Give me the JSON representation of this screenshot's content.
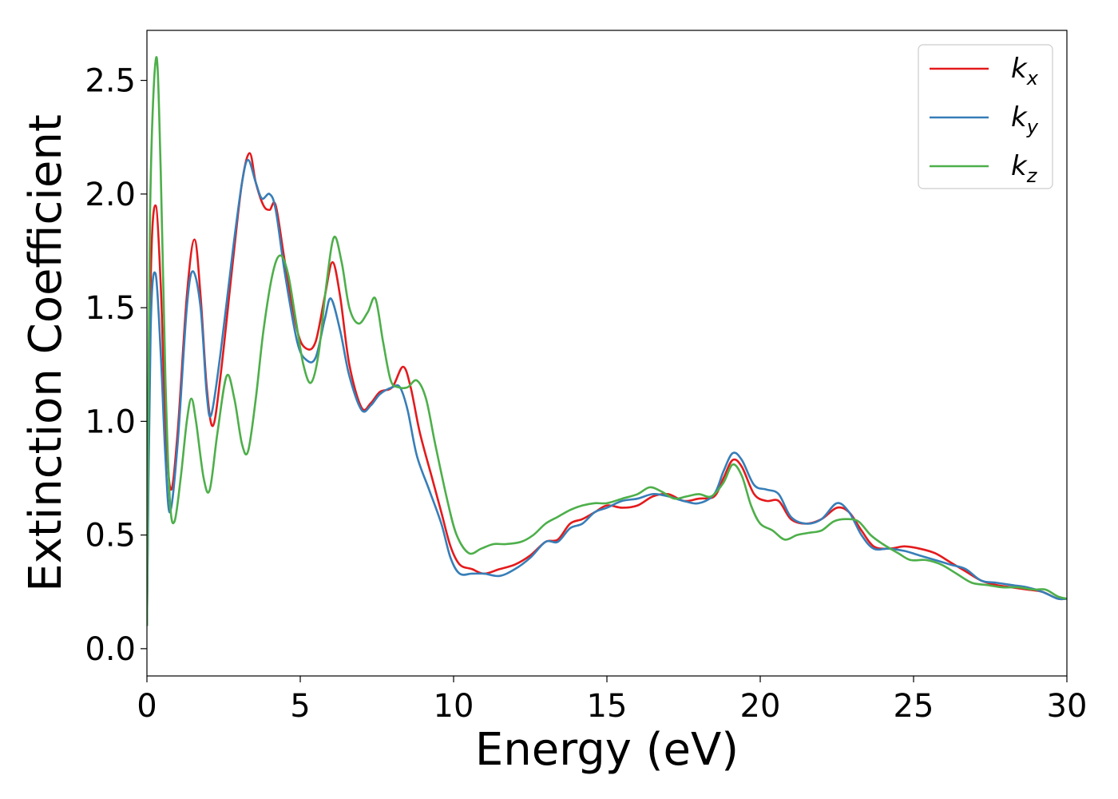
{
  "chart_data": {
    "type": "line",
    "xlabel": "Energy (eV)",
    "ylabel": "Extinction Coefficient",
    "xlim": [
      0,
      30
    ],
    "ylim": [
      -0.12,
      2.72
    ],
    "xticks": [
      0,
      5,
      10,
      15,
      20,
      25,
      30
    ],
    "xtick_labels": [
      "0",
      "5",
      "10",
      "15",
      "20",
      "25",
      "30"
    ],
    "yticks": [
      0.0,
      0.5,
      1.0,
      1.5,
      2.0,
      2.5
    ],
    "ytick_labels": [
      "0.0",
      "0.5",
      "1.0",
      "1.5",
      "2.0",
      "2.5"
    ],
    "grid": false,
    "legend_position": "top-right",
    "series": [
      {
        "name": "k",
        "subscript": "x",
        "color": "#e41a1c",
        "points": [
          [
            0,
            0.1
          ],
          [
            0.12,
            1.6
          ],
          [
            0.28,
            1.95
          ],
          [
            0.45,
            1.6
          ],
          [
            0.6,
            1.0
          ],
          [
            0.78,
            0.7
          ],
          [
            1.0,
            0.95
          ],
          [
            1.3,
            1.55
          ],
          [
            1.55,
            1.8
          ],
          [
            1.75,
            1.55
          ],
          [
            1.95,
            1.15
          ],
          [
            2.15,
            0.98
          ],
          [
            2.4,
            1.2
          ],
          [
            2.8,
            1.7
          ],
          [
            3.1,
            2.05
          ],
          [
            3.35,
            2.18
          ],
          [
            3.55,
            2.05
          ],
          [
            3.8,
            1.95
          ],
          [
            4.0,
            1.93
          ],
          [
            4.2,
            1.95
          ],
          [
            4.5,
            1.7
          ],
          [
            4.9,
            1.4
          ],
          [
            5.2,
            1.32
          ],
          [
            5.5,
            1.35
          ],
          [
            5.8,
            1.55
          ],
          [
            6.05,
            1.7
          ],
          [
            6.3,
            1.55
          ],
          [
            6.6,
            1.25
          ],
          [
            7.0,
            1.06
          ],
          [
            7.3,
            1.08
          ],
          [
            7.6,
            1.13
          ],
          [
            8.0,
            1.15
          ],
          [
            8.35,
            1.24
          ],
          [
            8.6,
            1.15
          ],
          [
            8.9,
            0.95
          ],
          [
            9.3,
            0.75
          ],
          [
            9.6,
            0.6
          ],
          [
            9.9,
            0.45
          ],
          [
            10.2,
            0.37
          ],
          [
            10.6,
            0.35
          ],
          [
            11.0,
            0.33
          ],
          [
            11.5,
            0.35
          ],
          [
            12.0,
            0.37
          ],
          [
            12.5,
            0.41
          ],
          [
            13.0,
            0.47
          ],
          [
            13.4,
            0.48
          ],
          [
            13.8,
            0.55
          ],
          [
            14.2,
            0.57
          ],
          [
            14.6,
            0.6
          ],
          [
            15.0,
            0.63
          ],
          [
            15.5,
            0.62
          ],
          [
            16.0,
            0.63
          ],
          [
            16.5,
            0.67
          ],
          [
            17.0,
            0.68
          ],
          [
            17.5,
            0.65
          ],
          [
            18.0,
            0.66
          ],
          [
            18.5,
            0.67
          ],
          [
            18.8,
            0.75
          ],
          [
            19.1,
            0.83
          ],
          [
            19.4,
            0.8
          ],
          [
            19.8,
            0.68
          ],
          [
            20.2,
            0.65
          ],
          [
            20.6,
            0.65
          ],
          [
            21.0,
            0.57
          ],
          [
            21.5,
            0.55
          ],
          [
            22.0,
            0.57
          ],
          [
            22.5,
            0.62
          ],
          [
            22.9,
            0.6
          ],
          [
            23.3,
            0.52
          ],
          [
            23.7,
            0.45
          ],
          [
            24.2,
            0.44
          ],
          [
            24.7,
            0.45
          ],
          [
            25.2,
            0.44
          ],
          [
            25.7,
            0.42
          ],
          [
            26.2,
            0.38
          ],
          [
            26.7,
            0.34
          ],
          [
            27.2,
            0.3
          ],
          [
            27.7,
            0.28
          ],
          [
            28.2,
            0.27
          ],
          [
            28.7,
            0.26
          ],
          [
            29.2,
            0.25
          ],
          [
            29.7,
            0.22
          ],
          [
            30,
            0.22
          ]
        ]
      },
      {
        "name": "k",
        "subscript": "y",
        "color": "#377eb8",
        "points": [
          [
            0,
            0.1
          ],
          [
            0.12,
            1.4
          ],
          [
            0.28,
            1.65
          ],
          [
            0.45,
            1.3
          ],
          [
            0.6,
            0.85
          ],
          [
            0.75,
            0.6
          ],
          [
            1.0,
            0.9
          ],
          [
            1.3,
            1.5
          ],
          [
            1.5,
            1.66
          ],
          [
            1.75,
            1.5
          ],
          [
            1.95,
            1.12
          ],
          [
            2.1,
            1.03
          ],
          [
            2.4,
            1.3
          ],
          [
            2.8,
            1.75
          ],
          [
            3.1,
            2.05
          ],
          [
            3.3,
            2.15
          ],
          [
            3.55,
            2.05
          ],
          [
            3.75,
            1.98
          ],
          [
            4.0,
            2.0
          ],
          [
            4.2,
            1.93
          ],
          [
            4.5,
            1.65
          ],
          [
            4.9,
            1.35
          ],
          [
            5.2,
            1.27
          ],
          [
            5.5,
            1.28
          ],
          [
            5.8,
            1.45
          ],
          [
            6.0,
            1.54
          ],
          [
            6.3,
            1.4
          ],
          [
            6.6,
            1.2
          ],
          [
            7.0,
            1.05
          ],
          [
            7.3,
            1.07
          ],
          [
            7.6,
            1.12
          ],
          [
            8.0,
            1.15
          ],
          [
            8.25,
            1.15
          ],
          [
            8.5,
            1.05
          ],
          [
            8.8,
            0.85
          ],
          [
            9.2,
            0.7
          ],
          [
            9.6,
            0.55
          ],
          [
            9.9,
            0.4
          ],
          [
            10.2,
            0.33
          ],
          [
            10.6,
            0.33
          ],
          [
            11.0,
            0.33
          ],
          [
            11.5,
            0.32
          ],
          [
            12.0,
            0.35
          ],
          [
            12.5,
            0.4
          ],
          [
            13.0,
            0.47
          ],
          [
            13.4,
            0.47
          ],
          [
            13.8,
            0.53
          ],
          [
            14.2,
            0.55
          ],
          [
            14.6,
            0.6
          ],
          [
            15.0,
            0.62
          ],
          [
            15.5,
            0.65
          ],
          [
            16.0,
            0.66
          ],
          [
            16.5,
            0.68
          ],
          [
            17.0,
            0.67
          ],
          [
            17.5,
            0.65
          ],
          [
            18.0,
            0.64
          ],
          [
            18.5,
            0.68
          ],
          [
            18.8,
            0.78
          ],
          [
            19.1,
            0.86
          ],
          [
            19.4,
            0.83
          ],
          [
            19.8,
            0.72
          ],
          [
            20.2,
            0.7
          ],
          [
            20.6,
            0.68
          ],
          [
            21.0,
            0.58
          ],
          [
            21.5,
            0.55
          ],
          [
            22.0,
            0.57
          ],
          [
            22.5,
            0.64
          ],
          [
            22.9,
            0.6
          ],
          [
            23.3,
            0.5
          ],
          [
            23.7,
            0.44
          ],
          [
            24.2,
            0.44
          ],
          [
            24.7,
            0.43
          ],
          [
            25.2,
            0.41
          ],
          [
            25.7,
            0.39
          ],
          [
            26.2,
            0.37
          ],
          [
            26.7,
            0.35
          ],
          [
            27.2,
            0.3
          ],
          [
            27.7,
            0.29
          ],
          [
            28.2,
            0.28
          ],
          [
            28.7,
            0.27
          ],
          [
            29.2,
            0.25
          ],
          [
            29.7,
            0.22
          ],
          [
            30,
            0.22
          ]
        ]
      },
      {
        "name": "k",
        "subscript": "z",
        "color": "#4daf4a",
        "points": [
          [
            0,
            0.1
          ],
          [
            0.1,
            1.9
          ],
          [
            0.3,
            2.6
          ],
          [
            0.45,
            2.1
          ],
          [
            0.6,
            1.2
          ],
          [
            0.75,
            0.65
          ],
          [
            0.9,
            0.56
          ],
          [
            1.1,
            0.75
          ],
          [
            1.3,
            1.0
          ],
          [
            1.45,
            1.1
          ],
          [
            1.6,
            1.0
          ],
          [
            1.85,
            0.75
          ],
          [
            2.05,
            0.7
          ],
          [
            2.3,
            0.95
          ],
          [
            2.6,
            1.2
          ],
          [
            2.85,
            1.1
          ],
          [
            3.1,
            0.9
          ],
          [
            3.3,
            0.87
          ],
          [
            3.55,
            1.1
          ],
          [
            3.8,
            1.4
          ],
          [
            4.1,
            1.65
          ],
          [
            4.35,
            1.73
          ],
          [
            4.6,
            1.65
          ],
          [
            4.85,
            1.45
          ],
          [
            5.1,
            1.25
          ],
          [
            5.35,
            1.17
          ],
          [
            5.6,
            1.3
          ],
          [
            5.85,
            1.6
          ],
          [
            6.1,
            1.81
          ],
          [
            6.35,
            1.7
          ],
          [
            6.6,
            1.5
          ],
          [
            6.9,
            1.43
          ],
          [
            7.2,
            1.48
          ],
          [
            7.45,
            1.54
          ],
          [
            7.7,
            1.35
          ],
          [
            7.95,
            1.18
          ],
          [
            8.2,
            1.15
          ],
          [
            8.5,
            1.15
          ],
          [
            8.8,
            1.18
          ],
          [
            9.1,
            1.1
          ],
          [
            9.4,
            0.9
          ],
          [
            9.8,
            0.65
          ],
          [
            10.1,
            0.5
          ],
          [
            10.5,
            0.42
          ],
          [
            10.9,
            0.44
          ],
          [
            11.3,
            0.46
          ],
          [
            11.7,
            0.46
          ],
          [
            12.2,
            0.47
          ],
          [
            12.6,
            0.5
          ],
          [
            13.0,
            0.55
          ],
          [
            13.4,
            0.58
          ],
          [
            13.8,
            0.61
          ],
          [
            14.2,
            0.63
          ],
          [
            14.6,
            0.64
          ],
          [
            15.0,
            0.64
          ],
          [
            15.5,
            0.66
          ],
          [
            16.0,
            0.68
          ],
          [
            16.4,
            0.71
          ],
          [
            16.8,
            0.69
          ],
          [
            17.2,
            0.66
          ],
          [
            17.6,
            0.67
          ],
          [
            18.0,
            0.68
          ],
          [
            18.4,
            0.67
          ],
          [
            18.8,
            0.73
          ],
          [
            19.1,
            0.81
          ],
          [
            19.4,
            0.76
          ],
          [
            19.7,
            0.63
          ],
          [
            20.0,
            0.55
          ],
          [
            20.4,
            0.52
          ],
          [
            20.8,
            0.48
          ],
          [
            21.2,
            0.5
          ],
          [
            21.6,
            0.51
          ],
          [
            22.0,
            0.52
          ],
          [
            22.4,
            0.56
          ],
          [
            22.8,
            0.57
          ],
          [
            23.2,
            0.56
          ],
          [
            23.6,
            0.5
          ],
          [
            24.0,
            0.46
          ],
          [
            24.5,
            0.42
          ],
          [
            24.9,
            0.39
          ],
          [
            25.4,
            0.39
          ],
          [
            25.9,
            0.37
          ],
          [
            26.4,
            0.33
          ],
          [
            26.9,
            0.29
          ],
          [
            27.4,
            0.28
          ],
          [
            27.9,
            0.27
          ],
          [
            28.4,
            0.27
          ],
          [
            28.9,
            0.26
          ],
          [
            29.3,
            0.26
          ],
          [
            29.7,
            0.23
          ],
          [
            30,
            0.22
          ]
        ]
      }
    ]
  }
}
